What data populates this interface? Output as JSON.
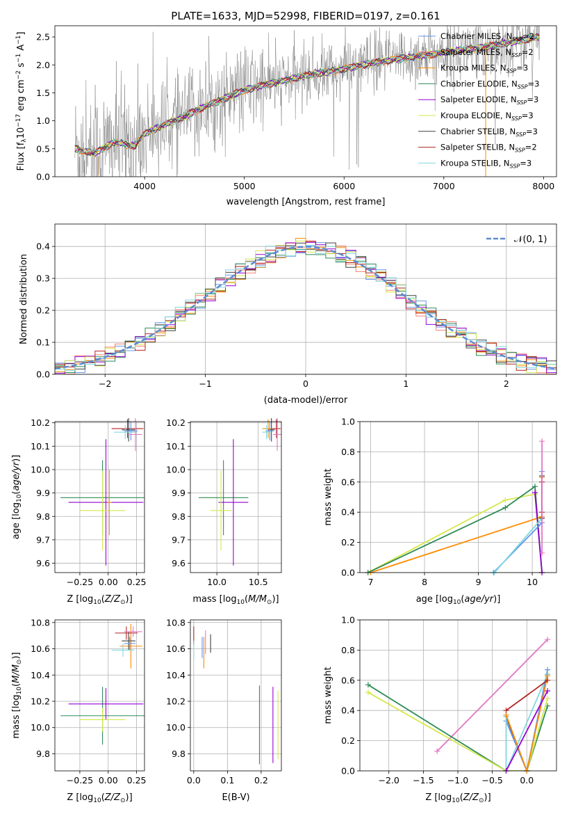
{
  "chart_data": [
    {
      "id": "spectrum",
      "type": "line",
      "title": "PLATE=1633, MJD=52998, FIBERID=0197, z=0.161",
      "xlabel": "wavelength [Angstrom, rest frame]",
      "ylabel": "Flux [f_λ 10^-17 erg cm^-2 s^-1 A^-1]",
      "xlim": [
        3100,
        8130
      ],
      "ylim": [
        0,
        2.7
      ],
      "xticks": [
        4000,
        5000,
        6000,
        7000,
        8000
      ],
      "yticks": [
        0.0,
        0.5,
        1.0,
        1.5,
        2.0,
        2.5
      ],
      "grid": false,
      "legend_position": "top-right",
      "data_color": "#808080",
      "continuum": [
        [
          3300,
          0.5
        ],
        [
          3500,
          0.42
        ],
        [
          3700,
          0.62
        ],
        [
          3900,
          0.55
        ],
        [
          4000,
          0.78
        ],
        [
          4300,
          1.0
        ],
        [
          4600,
          1.25
        ],
        [
          5000,
          1.55
        ],
        [
          5300,
          1.68
        ],
        [
          5700,
          1.84
        ],
        [
          6000,
          1.93
        ],
        [
          6300,
          2.04
        ],
        [
          6600,
          2.12
        ],
        [
          7000,
          2.22
        ],
        [
          7400,
          2.32
        ],
        [
          7800,
          2.45
        ],
        [
          7950,
          2.5
        ]
      ],
      "legend": [
        {
          "label": "Chabrier MILES, N",
          "sub": "SSP",
          "tail": "=2",
          "color": "#6495ed"
        },
        {
          "label": "Salpeter MILES, N",
          "sub": "SSP",
          "tail": "=2",
          "color": "#fa8072"
        },
        {
          "label": "Kroupa MILES, N",
          "sub": "SSP",
          "tail": "=3",
          "color": "#ff8c00"
        },
        {
          "label": "Chabrier ELODIE, N",
          "sub": "SSP",
          "tail": "=3",
          "color": "#2e8b57"
        },
        {
          "label": "Salpeter ELODIE, N",
          "sub": "SSP",
          "tail": "=3",
          "color": "#9400d3"
        },
        {
          "label": "Kroupa ELODIE, N",
          "sub": "SSP",
          "tail": "=3",
          "color": "#d4e84a"
        },
        {
          "label": "Chabrier STELIB, N",
          "sub": "SSP",
          "tail": "=3",
          "color": "#404040"
        },
        {
          "label": "Salpeter STELIB, N",
          "sub": "SSP",
          "tail": "=2",
          "color": "#b22222"
        },
        {
          "label": "Kroupa STELIB, N",
          "sub": "SSP",
          "tail": "=3",
          "color": "#7fd8e0"
        }
      ]
    },
    {
      "id": "residuals",
      "type": "histogram",
      "xlabel": "(data-model)/error",
      "ylabel": "Normed distribution",
      "xlim": [
        -2.5,
        2.5
      ],
      "ylim": [
        0,
        0.47
      ],
      "xticks": [
        -2,
        -1,
        0,
        1,
        2
      ],
      "xtick_labels": [
        "−2",
        "−1",
        "0",
        "1",
        "2"
      ],
      "yticks": [
        0.0,
        0.1,
        0.2,
        0.3,
        0.4
      ],
      "grid": true,
      "legend": "𝒩(0, 1)",
      "legend_position": "top-right",
      "gaussian": {
        "mu": 0,
        "sigma": 1,
        "color": "#5b8bd0"
      },
      "bin_width": 0.1,
      "series_colors": [
        "#6495ed",
        "#fa8072",
        "#ff8c00",
        "#2e8b57",
        "#9400d3",
        "#d4e84a",
        "#404040",
        "#b22222",
        "#7fd8e0"
      ]
    },
    {
      "id": "age_vs_Z",
      "type": "errorbar",
      "xlabel": "Z [log10(Z/Z⊙)]",
      "ylabel": "age  [log10(age/yr)]",
      "xlim": [
        -0.47,
        0.32
      ],
      "ylim": [
        9.56,
        10.205
      ],
      "xticks": [
        -0.25,
        0.0,
        0.25
      ],
      "xtick_labels": [
        "−0.25",
        "0.00",
        "0.25"
      ],
      "yticks": [
        9.6,
        9.7,
        9.8,
        9.9,
        10.0,
        10.1,
        10.2
      ],
      "points": [
        {
          "color": "#2e8b57",
          "x": -0.05,
          "xerr": 0.37,
          "y": 9.88,
          "yerr": 0.16
        },
        {
          "color": "#9400d3",
          "x": -0.02,
          "xerr": 0.33,
          "y": 9.86,
          "yerr": 0.27
        },
        {
          "color": "#d4e84a",
          "x": -0.05,
          "xerr": 0.2,
          "y": 9.825,
          "yerr": 0.17
        },
        {
          "color": "#ff8c00",
          "x": 0.01,
          "xerr": 0.02,
          "y": 9.86,
          "yerr": 0.14
        },
        {
          "color": "#b22222",
          "x": 0.17,
          "xerr": 0.14,
          "y": 10.175,
          "yerr": 0.04
        },
        {
          "color": "#404040",
          "x": 0.18,
          "xerr": 0.06,
          "y": 10.17,
          "yerr": 0.05
        },
        {
          "color": "#6495ed",
          "x": 0.2,
          "xerr": 0.06,
          "y": 10.165,
          "yerr": 0.04
        },
        {
          "color": "#7fd8e0",
          "x": 0.15,
          "xerr": 0.1,
          "y": 10.16,
          "yerr": 0.03
        },
        {
          "color": "#e377c2",
          "x": 0.24,
          "xerr": 0.06,
          "y": 10.15,
          "yerr": 0.07
        }
      ]
    },
    {
      "id": "age_vs_mass",
      "type": "errorbar",
      "xlabel": "mass [log10(M/M⊙)]",
      "ylabel": "",
      "xlim": [
        9.68,
        10.78
      ],
      "ylim": [
        9.56,
        10.205
      ],
      "xticks": [
        10.0,
        10.5
      ],
      "xtick_labels": [
        "10.0",
        "10.5"
      ],
      "yticks": [
        9.6,
        9.7,
        9.8,
        9.9,
        10.0,
        10.1,
        10.2
      ],
      "points": [
        {
          "color": "#2e8b57",
          "x": 10.08,
          "xerr": 0.3,
          "y": 9.88,
          "yerr": 0.16
        },
        {
          "color": "#9400d3",
          "x": 10.2,
          "xerr": 0.18,
          "y": 9.86,
          "yerr": 0.27
        },
        {
          "color": "#d4e84a",
          "x": 10.05,
          "xerr": 0.13,
          "y": 9.825,
          "yerr": 0.17
        },
        {
          "color": "#ff8c00",
          "x": 10.62,
          "xerr": 0.07,
          "y": 10.175,
          "yerr": 0.04
        },
        {
          "color": "#b22222",
          "x": 10.72,
          "xerr": 0.05,
          "y": 10.175,
          "yerr": 0.04
        },
        {
          "color": "#404040",
          "x": 10.66,
          "xerr": 0.04,
          "y": 10.17,
          "yerr": 0.05
        },
        {
          "color": "#6495ed",
          "x": 10.64,
          "xerr": 0.05,
          "y": 10.165,
          "yerr": 0.04
        },
        {
          "color": "#7fd8e0",
          "x": 10.6,
          "xerr": 0.05,
          "y": 10.16,
          "yerr": 0.03
        },
        {
          "color": "#e377c2",
          "x": 10.73,
          "xerr": 0.05,
          "y": 10.15,
          "yerr": 0.07
        }
      ]
    },
    {
      "id": "weight_vs_age",
      "type": "line",
      "xlabel": "age  [log10(age/yr)]",
      "ylabel": "mass weight",
      "xlim": [
        6.8,
        10.45
      ],
      "ylim": [
        0,
        1.0
      ],
      "xticks": [
        7,
        8,
        9,
        10
      ],
      "yticks": [
        0.0,
        0.2,
        0.4,
        0.6,
        0.8,
        1.0
      ],
      "grid": true,
      "series": [
        {
          "color": "#ff8c00",
          "points": [
            [
              7.0,
              0.0
            ],
            [
              10.18,
              0.37
            ],
            [
              10.18,
              0.63
            ]
          ]
        },
        {
          "color": "#d4e84a",
          "points": [
            [
              6.95,
              0.0
            ],
            [
              9.5,
              0.48
            ],
            [
              10.05,
              0.52
            ],
            [
              10.18,
              0.0
            ]
          ]
        },
        {
          "color": "#2e8b57",
          "points": [
            [
              6.95,
              0.0
            ],
            [
              9.5,
              0.43
            ],
            [
              10.05,
              0.57
            ],
            [
              10.18,
              0.0
            ]
          ]
        },
        {
          "color": "#9400d3",
          "points": [
            [
              10.05,
              0.53
            ],
            [
              10.18,
              0.0
            ]
          ]
        },
        {
          "color": "#6495ed",
          "points": [
            [
              9.28,
              0.0
            ],
            [
              10.18,
              0.33
            ],
            [
              10.18,
              0.67
            ]
          ]
        },
        {
          "color": "#7fd8e0",
          "points": [
            [
              9.3,
              0.0
            ],
            [
              10.18,
              0.36
            ],
            [
              10.18,
              0.64
            ]
          ]
        },
        {
          "color": "#b22222",
          "points": [
            [
              10.18,
              0.4
            ],
            [
              10.18,
              0.6
            ]
          ]
        },
        {
          "color": "#404040",
          "points": [
            [
              10.18,
              0.36
            ],
            [
              10.18,
              0.64
            ]
          ]
        },
        {
          "color": "#e377c2",
          "points": [
            [
              10.18,
              0.13
            ],
            [
              10.18,
              0.87
            ]
          ]
        }
      ]
    },
    {
      "id": "mass_vs_Z",
      "type": "errorbar",
      "xlabel": "Z [log10(Z/Z⊙)]",
      "ylabel": "mass [log10(M/M⊙)]",
      "xlim": [
        -0.47,
        0.32
      ],
      "ylim": [
        9.67,
        10.82
      ],
      "xticks": [
        -0.25,
        0.0,
        0.25
      ],
      "xtick_labels": [
        "−0.25",
        "0.00",
        "0.25"
      ],
      "yticks": [
        9.8,
        10.0,
        10.2,
        10.4,
        10.6,
        10.8
      ],
      "points": [
        {
          "color": "#2e8b57",
          "x": -0.05,
          "xerr": 0.37,
          "y": 10.09,
          "yerr": 0.22
        },
        {
          "color": "#9400d3",
          "x": -0.02,
          "xerr": 0.33,
          "y": 10.18,
          "yerr": 0.12
        },
        {
          "color": "#d4e84a",
          "x": -0.05,
          "xerr": 0.2,
          "y": 10.06,
          "yerr": 0.09
        },
        {
          "color": "#ff8c00",
          "x": 0.2,
          "xerr": 0.1,
          "y": 10.62,
          "yerr": 0.17
        },
        {
          "color": "#b22222",
          "x": 0.16,
          "xerr": 0.1,
          "y": 10.72,
          "yerr": 0.05
        },
        {
          "color": "#404040",
          "x": 0.18,
          "xerr": 0.06,
          "y": 10.66,
          "yerr": 0.07
        },
        {
          "color": "#6495ed",
          "x": 0.19,
          "xerr": 0.05,
          "y": 10.64,
          "yerr": 0.05
        },
        {
          "color": "#7fd8e0",
          "x": 0.13,
          "xerr": 0.1,
          "y": 10.59,
          "yerr": 0.05
        },
        {
          "color": "#e377c2",
          "x": 0.22,
          "xerr": 0.08,
          "y": 10.73,
          "yerr": 0.04
        }
      ]
    },
    {
      "id": "mass_vs_ebv",
      "type": "errorbar",
      "xlabel": "E(B-V)",
      "ylabel": "",
      "xlim": [
        -0.01,
        0.26
      ],
      "ylim": [
        9.67,
        10.82
      ],
      "xticks": [
        0.0,
        0.1,
        0.2
      ],
      "xtick_labels": [
        "0.0",
        "0.1",
        "0.2"
      ],
      "yticks": [
        9.8,
        10.0,
        10.2,
        10.4,
        10.6,
        10.8
      ],
      "points": [
        {
          "color": "#2e8b57",
          "x": 0.195,
          "xerr": 0,
          "y": 10.02,
          "yerr": 0.3
        },
        {
          "color": "#9400d3",
          "x": 0.235,
          "xerr": 0,
          "y": 10.02,
          "yerr": 0.29
        },
        {
          "color": "#d4e84a",
          "x": 0.25,
          "xerr": 0,
          "y": 10.02,
          "yerr": 0.26
        },
        {
          "color": "#b22222",
          "x": 0.0,
          "xerr": 0,
          "y": 10.7,
          "yerr": 0.07
        },
        {
          "color": "#7fd8e0",
          "x": 0.0,
          "xerr": 0,
          "y": 10.59,
          "yerr": 0.07
        },
        {
          "color": "#ff8c00",
          "x": 0.03,
          "xerr": 0,
          "y": 10.57,
          "yerr": 0.12
        },
        {
          "color": "#6495ed",
          "x": 0.025,
          "xerr": 0,
          "y": 10.61,
          "yerr": 0.08
        },
        {
          "color": "#e377c2",
          "x": 0.035,
          "xerr": 0,
          "y": 10.65,
          "yerr": 0.09
        },
        {
          "color": "#404040",
          "x": 0.05,
          "xerr": 0,
          "y": 10.64,
          "yerr": 0.07
        }
      ]
    },
    {
      "id": "weight_vs_Z",
      "type": "line",
      "xlabel": "Z [log10(Z/Z⊙)]",
      "ylabel": "mass weight",
      "xlim": [
        -2.42,
        0.43
      ],
      "ylim": [
        0,
        1.0
      ],
      "xticks": [
        -2.0,
        -1.5,
        -1.0,
        -0.5,
        0.0
      ],
      "xtick_labels": [
        "−2.0",
        "−1.5",
        "−1.0",
        "−0.5",
        "0.0"
      ],
      "yticks": [
        0.0,
        0.2,
        0.4,
        0.6,
        0.8,
        1.0
      ],
      "grid": true,
      "series": [
        {
          "color": "#e377c2",
          "points": [
            [
              -1.3,
              0.13
            ],
            [
              0.3,
              0.87
            ]
          ]
        },
        {
          "color": "#2e8b57",
          "points": [
            [
              -2.3,
              0.57
            ],
            [
              -0.3,
              0.0
            ],
            [
              0.0,
              0.0
            ],
            [
              0.3,
              0.43
            ]
          ]
        },
        {
          "color": "#d4e84a",
          "points": [
            [
              -2.3,
              0.52
            ],
            [
              -0.3,
              0.0
            ],
            [
              0.0,
              0.0
            ],
            [
              0.3,
              0.48
            ]
          ]
        },
        {
          "color": "#404040",
          "points": [
            [
              -0.3,
              0.36
            ],
            [
              0.0,
              0.0
            ],
            [
              0.3,
              0.64
            ]
          ]
        },
        {
          "color": "#6495ed",
          "points": [
            [
              -0.3,
              0.33
            ],
            [
              0.0,
              0.0
            ],
            [
              0.3,
              0.67
            ]
          ]
        },
        {
          "color": "#7fd8e0",
          "points": [
            [
              -0.3,
              0.36
            ],
            [
              -0.3,
              0.0
            ],
            [
              0.3,
              0.64
            ]
          ]
        },
        {
          "color": "#ff8c00",
          "points": [
            [
              -0.3,
              0.37
            ],
            [
              0.0,
              0.0
            ],
            [
              0.3,
              0.63
            ]
          ]
        },
        {
          "color": "#9400d3",
          "points": [
            [
              -0.3,
              0.0
            ],
            [
              0.3,
              0.53
            ]
          ]
        },
        {
          "color": "#b22222",
          "points": [
            [
              -0.3,
              0.4
            ],
            [
              0.3,
              0.6
            ]
          ]
        }
      ]
    }
  ]
}
